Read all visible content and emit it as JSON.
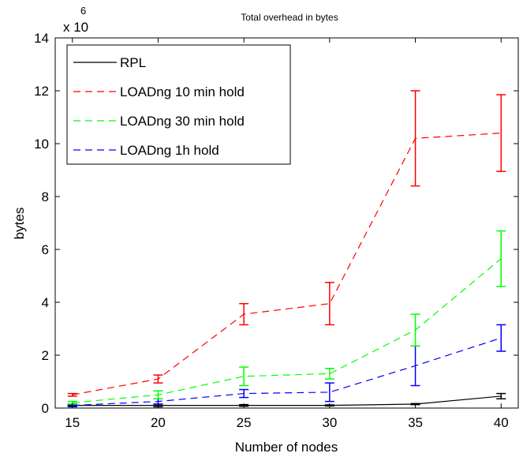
{
  "chart_data": {
    "type": "line",
    "title": "Total overhead in bytes",
    "xlabel": "Number of nodes",
    "ylabel": "bytes",
    "y_scale_multiplier": "x 10",
    "y_scale_exponent": "6",
    "x": [
      15,
      20,
      25,
      30,
      35,
      40
    ],
    "xlim": [
      14,
      41
    ],
    "ylim": [
      0,
      14
    ],
    "x_ticks": [
      "15",
      "20",
      "25",
      "30",
      "35",
      "40"
    ],
    "y_ticks": [
      "0",
      "2",
      "4",
      "6",
      "8",
      "10",
      "12",
      "14"
    ],
    "grid": false,
    "legend_position": "top-left",
    "series": [
      {
        "name": "RPL",
        "color": "#000000",
        "style": "solid",
        "values": [
          0.1,
          0.1,
          0.1,
          0.1,
          0.15,
          0.45
        ],
        "errors": [
          0.02,
          0.05,
          0.03,
          0.02,
          0.02,
          0.1
        ]
      },
      {
        "name": "LOADng 10 min hold",
        "color": "#ff0000",
        "style": "dashed",
        "values": [
          0.5,
          1.1,
          3.55,
          3.95,
          10.2,
          10.4
        ],
        "errors": [
          0.05,
          0.15,
          0.4,
          0.8,
          1.8,
          1.45
        ]
      },
      {
        "name": "LOADng 30 min hold",
        "color": "#00ff00",
        "style": "dashed",
        "values": [
          0.2,
          0.5,
          1.2,
          1.3,
          2.95,
          5.65
        ],
        "errors": [
          0.05,
          0.15,
          0.35,
          0.2,
          0.6,
          1.05
        ]
      },
      {
        "name": "LOADng 1h hold",
        "color": "#0000ff",
        "style": "dashed",
        "values": [
          0.1,
          0.25,
          0.55,
          0.6,
          1.6,
          2.65
        ],
        "errors": [
          0.05,
          0.1,
          0.15,
          0.35,
          0.75,
          0.5
        ]
      }
    ]
  }
}
